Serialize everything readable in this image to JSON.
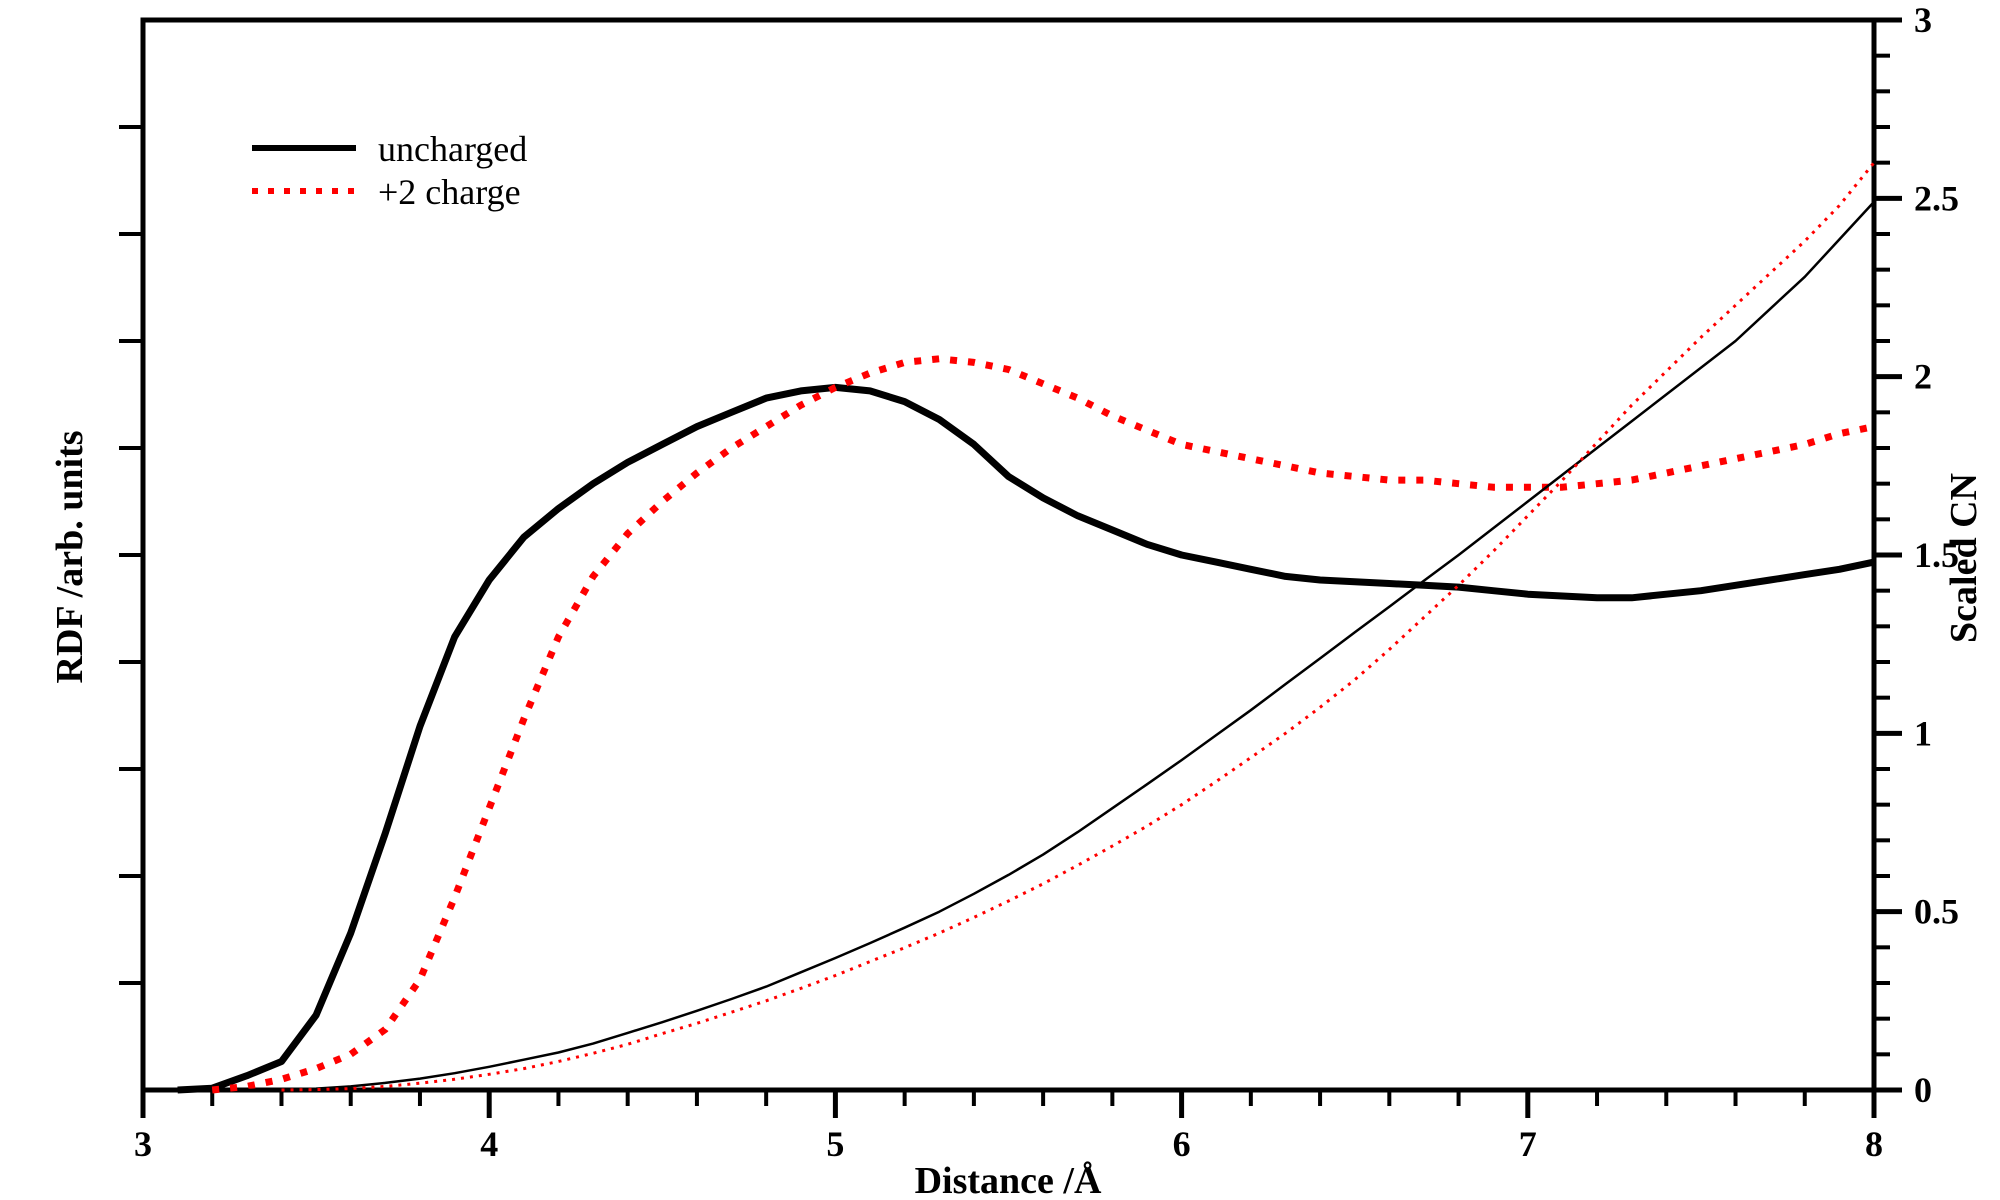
{
  "figure": {
    "background": "#ffffff",
    "frame_color": "#000000"
  },
  "legend": {
    "position": "upper-left-inside",
    "items": [
      {
        "label": "uncharged",
        "color": "#000000",
        "style": "solid"
      },
      {
        "label": "+2 charge",
        "color": "#ff0000",
        "style": "dotted"
      }
    ]
  },
  "axes": {
    "x": {
      "title": "Distance /Å",
      "range": [
        3,
        8
      ],
      "major_ticks": [
        {
          "value": 3,
          "label": "3"
        },
        {
          "value": 4,
          "label": "4"
        },
        {
          "value": 5,
          "label": "5"
        },
        {
          "value": 6,
          "label": "6"
        },
        {
          "value": 7,
          "label": "7"
        },
        {
          "value": 8,
          "label": "8"
        }
      ],
      "minor_tick_step": 0.2
    },
    "y_left": {
      "title": "RDF /arb. units",
      "labels_shown": false,
      "tick_count": 9
    },
    "y_right": {
      "title": "Scaled CN",
      "range": [
        0,
        3
      ],
      "major_ticks": [
        {
          "value": 0,
          "label": "0"
        },
        {
          "value": 0.5,
          "label": "0.5"
        },
        {
          "value": 1,
          "label": "1"
        },
        {
          "value": 1.5,
          "label": "1.5"
        },
        {
          "value": 2,
          "label": "2"
        },
        {
          "value": 2.5,
          "label": "2.5"
        },
        {
          "value": 3,
          "label": "3"
        }
      ],
      "minor_tick_step": 0.1
    }
  },
  "chart_data": {
    "type": "line",
    "title": "",
    "xlabel": "Distance /Å",
    "ylabel_left": "RDF /arb. units",
    "ylabel_right": "Scaled CN",
    "x_range": [
      3,
      8
    ],
    "y_right_range": [
      0,
      3
    ],
    "grid": false,
    "legend_position": "upper-left-inside",
    "x": [
      3.0,
      3.1,
      3.2,
      3.3,
      3.4,
      3.5,
      3.6,
      3.7,
      3.8,
      3.9,
      4.0,
      4.1,
      4.2,
      4.3,
      4.4,
      4.5,
      4.6,
      4.7,
      4.8,
      4.9,
      5.0,
      5.1,
      5.2,
      5.3,
      5.4,
      5.5,
      5.6,
      5.7,
      5.8,
      5.9,
      6.0,
      6.1,
      6.2,
      6.3,
      6.4,
      6.5,
      6.6,
      6.7,
      6.8,
      6.9,
      7.0,
      7.1,
      7.2,
      7.3,
      7.4,
      7.5,
      7.6,
      7.7,
      7.8,
      7.9,
      8.0
    ],
    "series": [
      {
        "name": "uncharged RDF",
        "legend_label": "uncharged",
        "color": "#000000",
        "line": "solid-thick",
        "values": [
          null,
          0.0,
          0.005,
          0.04,
          0.08,
          0.21,
          0.44,
          0.72,
          1.02,
          1.27,
          1.43,
          1.55,
          1.63,
          1.7,
          1.76,
          1.81,
          1.86,
          1.9,
          1.94,
          1.96,
          1.97,
          1.96,
          1.93,
          1.88,
          1.81,
          1.72,
          1.66,
          1.61,
          1.57,
          1.53,
          1.5,
          1.48,
          1.46,
          1.44,
          1.43,
          1.425,
          1.42,
          1.415,
          1.41,
          1.4,
          1.39,
          1.385,
          1.38,
          1.38,
          1.39,
          1.4,
          1.415,
          1.43,
          1.445,
          1.46,
          1.48
        ]
      },
      {
        "name": "+2 charge RDF",
        "legend_label": "+2 charge",
        "color": "#ff0000",
        "line": "dotted-thick",
        "values": [
          null,
          null,
          0.0,
          0.01,
          0.03,
          0.06,
          0.1,
          0.17,
          0.31,
          0.54,
          0.79,
          1.04,
          1.27,
          1.44,
          1.56,
          1.65,
          1.73,
          1.8,
          1.86,
          1.92,
          1.97,
          2.01,
          2.04,
          2.05,
          2.04,
          2.02,
          1.98,
          1.94,
          1.89,
          1.85,
          1.81,
          1.79,
          1.77,
          1.75,
          1.73,
          1.72,
          1.71,
          1.71,
          1.7,
          1.69,
          1.69,
          1.69,
          1.7,
          1.71,
          1.73,
          1.75,
          1.77,
          1.79,
          1.81,
          1.84,
          1.86
        ]
      },
      {
        "name": "uncharged scaled CN",
        "legend_label": "uncharged",
        "color": "#000000",
        "line": "solid-thin",
        "values": [
          null,
          null,
          null,
          0.0,
          0.001,
          0.004,
          0.01,
          0.02,
          0.032,
          0.047,
          0.065,
          0.085,
          0.105,
          0.13,
          0.16,
          0.19,
          0.222,
          0.255,
          0.29,
          0.33,
          0.37,
          0.412,
          0.455,
          0.5,
          0.55,
          0.603,
          0.66,
          0.723,
          0.79,
          0.857,
          0.925,
          0.995,
          1.065,
          1.138,
          1.21,
          1.283,
          1.355,
          1.428,
          1.5,
          1.575,
          1.65,
          1.725,
          1.8,
          1.875,
          1.95,
          2.025,
          2.1,
          2.19,
          2.28,
          2.385,
          2.49
        ]
      },
      {
        "name": "+2 charge scaled CN",
        "legend_label": "+2 charge",
        "color": "#ff0000",
        "line": "dotted-thin",
        "values": [
          null,
          null,
          null,
          null,
          0.0,
          0.001,
          0.004,
          0.01,
          0.019,
          0.03,
          0.044,
          0.06,
          0.08,
          0.103,
          0.128,
          0.158,
          0.187,
          0.218,
          0.25,
          0.285,
          0.321,
          0.36,
          0.399,
          0.44,
          0.484,
          0.53,
          0.578,
          0.63,
          0.684,
          0.74,
          0.8,
          0.865,
          0.932,
          1.0,
          1.073,
          1.15,
          1.235,
          1.325,
          1.415,
          1.51,
          1.61,
          1.71,
          1.815,
          1.92,
          2.015,
          2.11,
          2.2,
          2.29,
          2.38,
          2.48,
          2.6
        ]
      }
    ]
  }
}
